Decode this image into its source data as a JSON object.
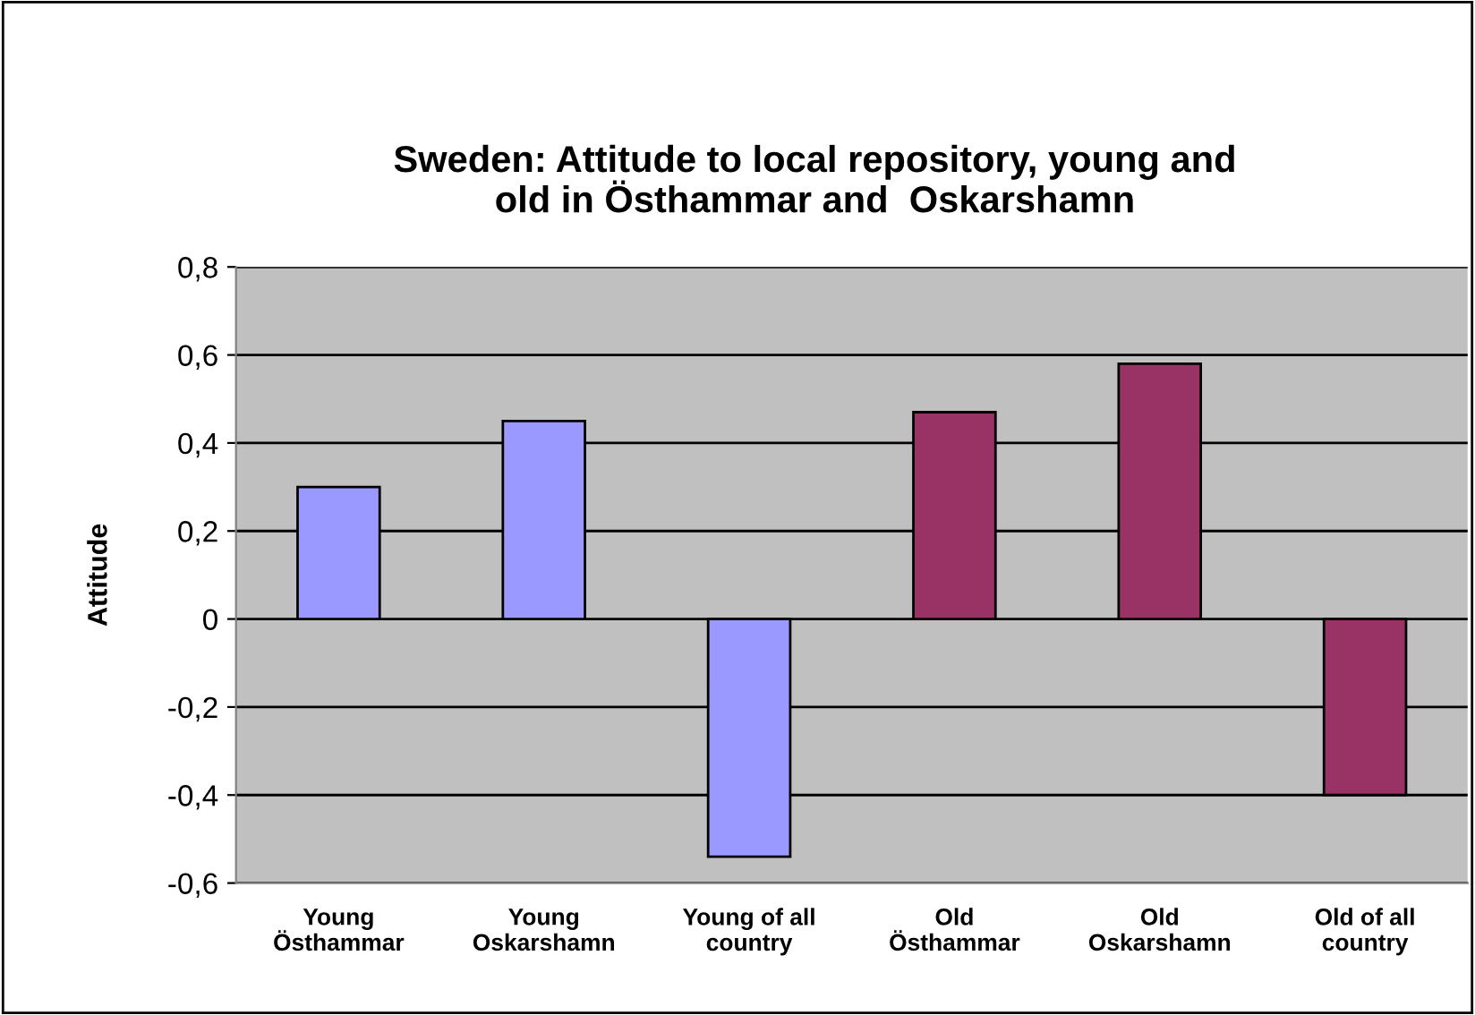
{
  "chart_data": {
    "type": "bar",
    "title": "Sweden: Attitude to local repository, young and\nold in Östhammar and  Oskarshamn",
    "ylabel": "Attitude",
    "categories": [
      "Young\nÖsthammar",
      "Young\nOskarshamn",
      "Young of all\ncountry",
      "Old\nÖsthammar",
      "Old\nOskarshamn",
      "Old of all\ncountry"
    ],
    "values": [
      0.3,
      0.45,
      -0.54,
      0.47,
      0.58,
      -0.4
    ],
    "colors": [
      "#9999ff",
      "#9999ff",
      "#9999ff",
      "#993366",
      "#993366",
      "#993366"
    ],
    "ylim": [
      -0.6,
      0.8
    ],
    "yticks": [
      {
        "value": -0.6,
        "label": "-0,6"
      },
      {
        "value": -0.4,
        "label": "-0,4"
      },
      {
        "value": -0.2,
        "label": "-0,2"
      },
      0,
      {
        "value": 0.2,
        "label": "0,2"
      },
      {
        "value": 0.4,
        "label": "0,4"
      },
      {
        "value": 0.6,
        "label": "0,6"
      },
      {
        "value": 0.8,
        "label": "0,8"
      }
    ],
    "grid": "y",
    "legend": false
  }
}
